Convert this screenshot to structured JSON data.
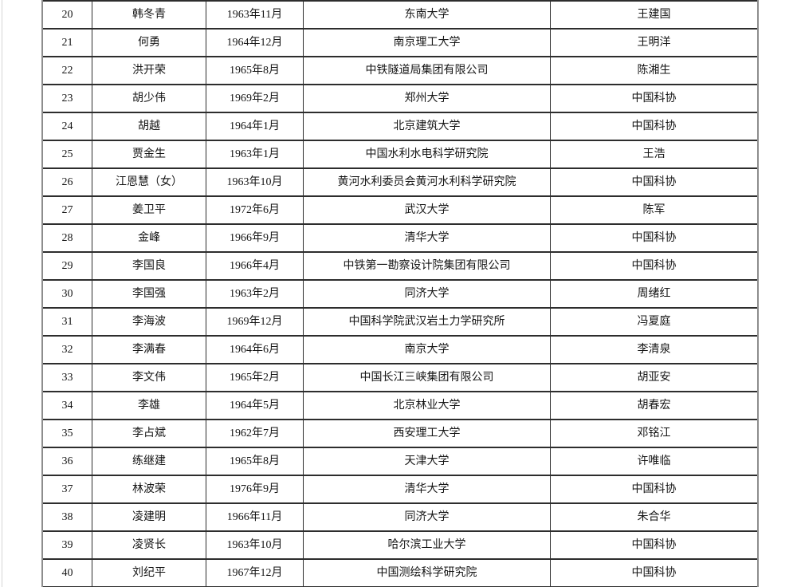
{
  "table": {
    "column_keys": [
      "index",
      "name",
      "birth_date",
      "workplace",
      "nominator"
    ],
    "rows": [
      {
        "index": "20",
        "name": "韩冬青",
        "birth_date": "1963年11月",
        "workplace": "东南大学",
        "nominator": "王建国"
      },
      {
        "index": "21",
        "name": "何勇",
        "birth_date": "1964年12月",
        "workplace": "南京理工大学",
        "nominator": "王明洋"
      },
      {
        "index": "22",
        "name": "洪开荣",
        "birth_date": "1965年8月",
        "workplace": "中铁隧道局集团有限公司",
        "nominator": "陈湘生"
      },
      {
        "index": "23",
        "name": "胡少伟",
        "birth_date": "1969年2月",
        "workplace": "郑州大学",
        "nominator": "中国科协"
      },
      {
        "index": "24",
        "name": "胡越",
        "birth_date": "1964年1月",
        "workplace": "北京建筑大学",
        "nominator": "中国科协"
      },
      {
        "index": "25",
        "name": "贾金生",
        "birth_date": "1963年1月",
        "workplace": "中国水利水电科学研究院",
        "nominator": "王浩"
      },
      {
        "index": "26",
        "name": "江恩慧（女）",
        "birth_date": "1963年10月",
        "workplace": "黄河水利委员会黄河水利科学研究院",
        "nominator": "中国科协"
      },
      {
        "index": "27",
        "name": "姜卫平",
        "birth_date": "1972年6月",
        "workplace": "武汉大学",
        "nominator": "陈军"
      },
      {
        "index": "28",
        "name": "金峰",
        "birth_date": "1966年9月",
        "workplace": "清华大学",
        "nominator": "中国科协"
      },
      {
        "index": "29",
        "name": "李国良",
        "birth_date": "1966年4月",
        "workplace": "中铁第一勘察设计院集团有限公司",
        "nominator": "中国科协"
      },
      {
        "index": "30",
        "name": "李国强",
        "birth_date": "1963年2月",
        "workplace": "同济大学",
        "nominator": "周绪红"
      },
      {
        "index": "31",
        "name": "李海波",
        "birth_date": "1969年12月",
        "workplace": "中国科学院武汉岩土力学研究所",
        "nominator": "冯夏庭"
      },
      {
        "index": "32",
        "name": "李满春",
        "birth_date": "1964年6月",
        "workplace": "南京大学",
        "nominator": "李清泉"
      },
      {
        "index": "33",
        "name": "李文伟",
        "birth_date": "1965年2月",
        "workplace": "中国长江三峡集团有限公司",
        "nominator": "胡亚安"
      },
      {
        "index": "34",
        "name": "李雄",
        "birth_date": "1964年5月",
        "workplace": "北京林业大学",
        "nominator": "胡春宏"
      },
      {
        "index": "35",
        "name": "李占斌",
        "birth_date": "1962年7月",
        "workplace": "西安理工大学",
        "nominator": "邓铭江"
      },
      {
        "index": "36",
        "name": "练继建",
        "birth_date": "1965年8月",
        "workplace": "天津大学",
        "nominator": "许唯临"
      },
      {
        "index": "37",
        "name": "林波荣",
        "birth_date": "1976年9月",
        "workplace": "清华大学",
        "nominator": "中国科协"
      },
      {
        "index": "38",
        "name": "凌建明",
        "birth_date": "1966年11月",
        "workplace": "同济大学",
        "nominator": "朱合华"
      },
      {
        "index": "39",
        "name": "凌贤长",
        "birth_date": "1963年10月",
        "workplace": "哈尔滨工业大学",
        "nominator": "中国科协"
      },
      {
        "index": "40",
        "name": "刘纪平",
        "birth_date": "1967年12月",
        "workplace": "中国测绘科学研究院",
        "nominator": "中国科协"
      }
    ]
  }
}
